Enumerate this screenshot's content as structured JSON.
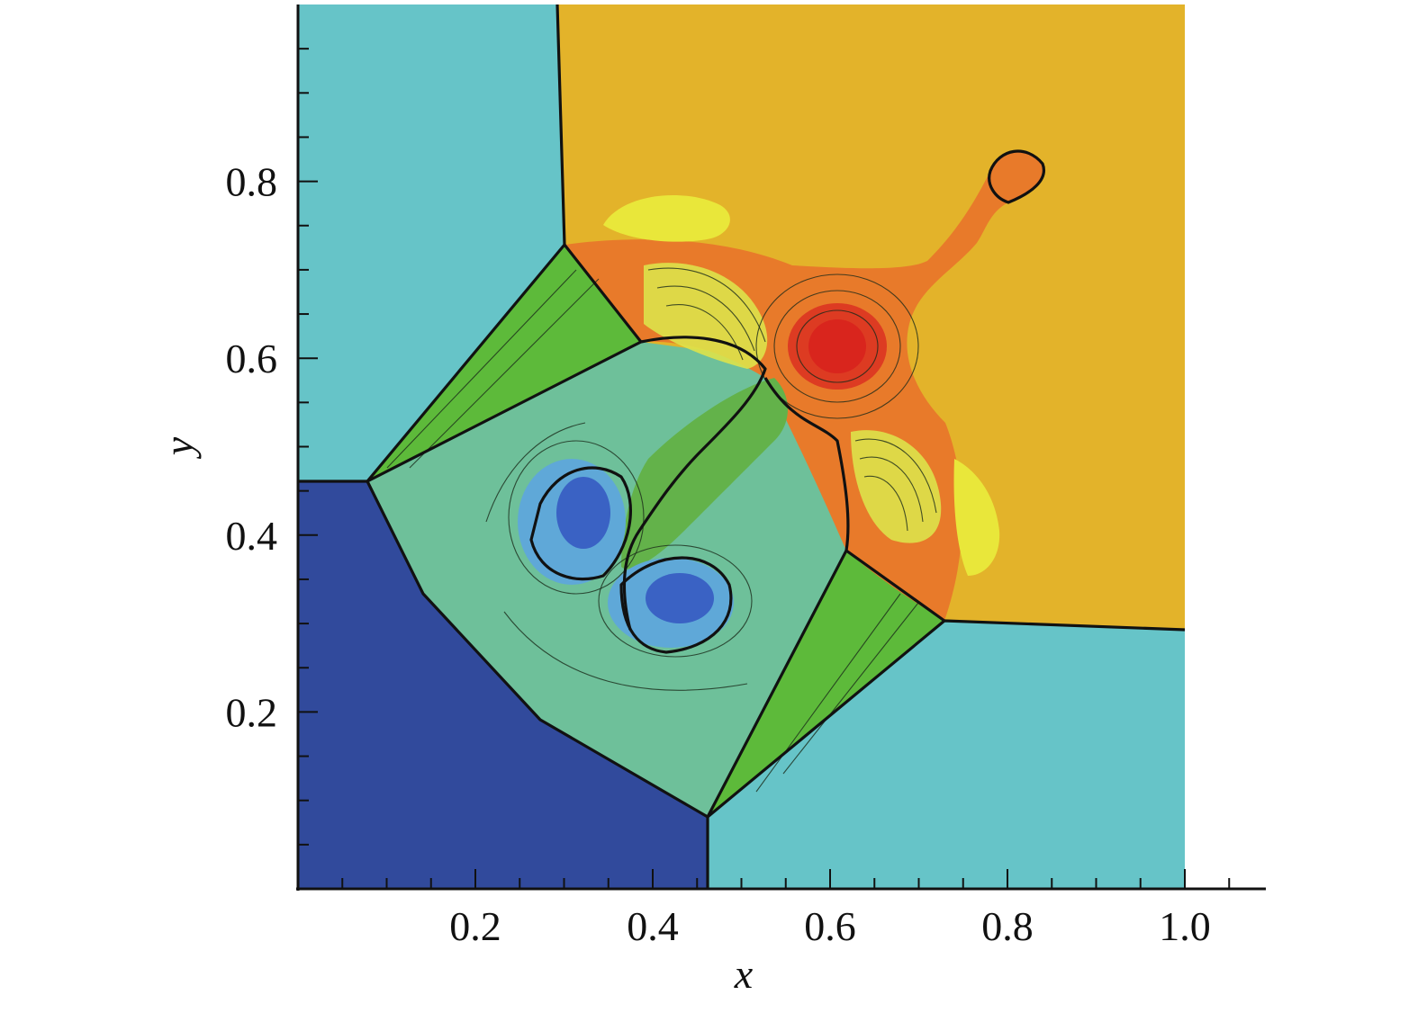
{
  "chart_data": {
    "type": "heatmap",
    "title": "",
    "xlabel": "x",
    "ylabel": "y",
    "xlim": [
      0.0,
      1.1
    ],
    "ylim": [
      0.0,
      1.0
    ],
    "x_ticks": [
      "0.2",
      "0.4",
      "0.6",
      "0.8",
      "1.0"
    ],
    "y_ticks": [
      "0.2",
      "0.4",
      "0.6",
      "0.8"
    ],
    "x_tick_values": [
      0.2,
      0.4,
      0.6,
      0.8,
      1.0
    ],
    "y_tick_values": [
      0.2,
      0.4,
      0.6,
      0.8
    ],
    "grid": false,
    "colors": {
      "cyan_region": "#66c4c8",
      "blue_region": "#314a9c",
      "orange_region": "#e3b32a",
      "green_region": "#5dba3a",
      "teal_core": "#6ec09a",
      "light_blue": "#5fa8d8",
      "deep_blue": "#3a62c4",
      "yellow": "#e9e73a",
      "orange_red": "#e87a2a",
      "red": "#dd3b22"
    }
  }
}
